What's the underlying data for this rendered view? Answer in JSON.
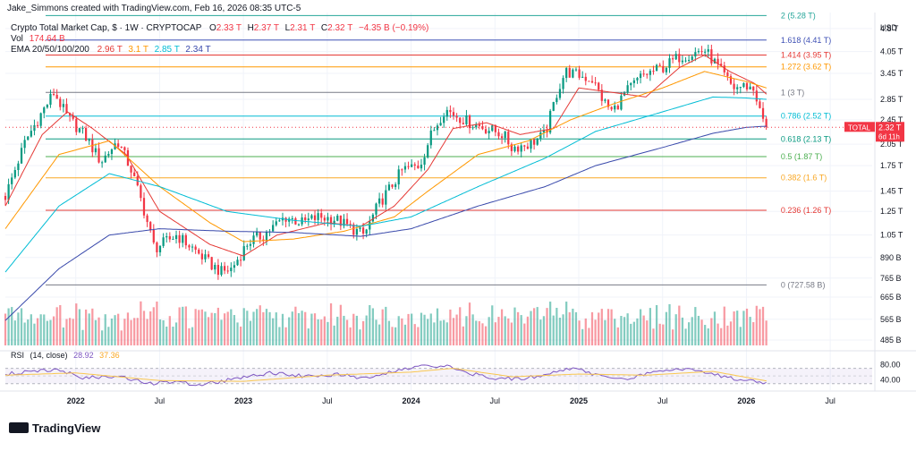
{
  "header": {
    "created_by": "Jake_Simmons created with TradingView.com, Feb 16, 2026 08:35 UTC-5"
  },
  "legend": {
    "symbol": "Crypto Total Market Cap, $ · 1W · CRYPTOCAP",
    "ohlc": {
      "o_label": "O",
      "o": "2.33 T",
      "h_label": "H",
      "h": "2.37 T",
      "l_label": "L",
      "l": "2.31 T",
      "c_label": "C",
      "c": "2.32 T",
      "change": "−4.35 B (−0.19%)"
    },
    "vol_label": "Vol",
    "vol_value": "174.64 B",
    "ema_label": "EMA 20/50/100/200",
    "ema_values": [
      {
        "value": "2.96 T",
        "color": "#e53935"
      },
      {
        "value": "3.1 T",
        "color": "#ff9800"
      },
      {
        "value": "2.85 T",
        "color": "#00bcd4"
      },
      {
        "value": "2.34 T",
        "color": "#3949ab"
      }
    ]
  },
  "price_axis": {
    "unit": "USD",
    "ticks": [
      {
        "label": "4.8 T",
        "value": 4.8
      },
      {
        "label": "4.05 T",
        "value": 4.05
      },
      {
        "label": "3.45 T",
        "value": 3.45
      },
      {
        "label": "2.85 T",
        "value": 2.85
      },
      {
        "label": "2.45 T",
        "value": 2.45
      },
      {
        "label": "2.05 T",
        "value": 2.05
      },
      {
        "label": "1.75 T",
        "value": 1.75
      },
      {
        "label": "1.45 T",
        "value": 1.45
      },
      {
        "label": "1.25 T",
        "value": 1.25
      },
      {
        "label": "1.05 T",
        "value": 1.05
      },
      {
        "label": "890 B",
        "value": 0.89
      },
      {
        "label": "765 B",
        "value": 0.765
      },
      {
        "label": "665 B",
        "value": 0.665
      },
      {
        "label": "565 B",
        "value": 0.565
      },
      {
        "label": "485 B",
        "value": 0.485
      }
    ]
  },
  "price_tag": {
    "label": "TOTAL",
    "value": "2.32 T",
    "countdown": "6d 11h",
    "price": 2.32
  },
  "fib_levels": [
    {
      "label": "2 (5.28 T)",
      "value": 5.28,
      "color": "#26a69a"
    },
    {
      "label": "1.618 (4.41 T)",
      "value": 4.41,
      "color": "#3f51b5"
    },
    {
      "label": "1.414 (3.95 T)",
      "value": 3.95,
      "color": "#e53935"
    },
    {
      "label": "1.272 (3.62 T)",
      "value": 3.62,
      "color": "#ff9800"
    },
    {
      "label": "1 (3 T)",
      "value": 3.0,
      "color": "#787b86"
    },
    {
      "label": "0.786 (2.52 T)",
      "value": 2.52,
      "color": "#00bcd4"
    },
    {
      "label": "0.618 (2.13 T)",
      "value": 2.13,
      "color": "#089981"
    },
    {
      "label": "0.5 (1.87 T)",
      "value": 1.87,
      "color": "#4caf50"
    },
    {
      "label": "0.382 (1.6 T)",
      "value": 1.6,
      "color": "#f9a825"
    },
    {
      "label": "0.236 (1.26 T)",
      "value": 1.26,
      "color": "#e53935"
    },
    {
      "label": "0 (727.58 B)",
      "value": 0.72758,
      "color": "#787b86"
    }
  ],
  "rsi": {
    "label": "RSI",
    "params": "(14, close)",
    "value": "28.92",
    "sma_value": "37.36",
    "ticks": [
      {
        "label": "80.00",
        "value": 80
      },
      {
        "label": "40.00",
        "value": 40
      }
    ]
  },
  "time_axis": [
    {
      "label": "2022",
      "x": 2022.0
    },
    {
      "label": "Jul",
      "x": 2022.5
    },
    {
      "label": "2023",
      "x": 2023.0
    },
    {
      "label": "Jul",
      "x": 2023.5
    },
    {
      "label": "2024",
      "x": 2024.0
    },
    {
      "label": "Jul",
      "x": 2024.5
    },
    {
      "label": "2025",
      "x": 2025.0
    },
    {
      "label": "Jul",
      "x": 2025.5
    },
    {
      "label": "2026",
      "x": 2026.0
    },
    {
      "label": "Jul",
      "x": 2026.5
    }
  ],
  "logo": "TradingView",
  "chart_data": {
    "type": "line",
    "scale": "log",
    "x_range": [
      2021.58,
      2026.75
    ],
    "ylim": [
      0.46,
      5.4
    ],
    "close_series": {
      "x": [
        2021.58,
        2021.7,
        2021.8,
        2021.87,
        2021.95,
        2022.05,
        2022.15,
        2022.25,
        2022.33,
        2022.4,
        2022.47,
        2022.6,
        2022.7,
        2022.8,
        2022.87,
        2022.93,
        2023.03,
        2023.12,
        2023.25,
        2023.35,
        2023.45,
        2023.55,
        2023.65,
        2023.72,
        2023.8,
        2023.88,
        2023.95,
        2024.05,
        2024.12,
        2024.2,
        2024.35,
        2024.45,
        2024.55,
        2024.6,
        2024.7,
        2024.8,
        2024.87,
        2024.92,
        2025.0,
        2025.08,
        2025.15,
        2025.2,
        2025.28,
        2025.38,
        2025.5,
        2025.6,
        2025.68,
        2025.75,
        2025.8,
        2025.85,
        2025.92,
        2026.0,
        2026.05,
        2026.08,
        2026.12
      ],
      "y": [
        1.4,
        2.1,
        2.6,
        3.0,
        2.5,
        2.2,
        1.8,
        2.1,
        1.7,
        1.3,
        0.95,
        1.05,
        0.95,
        0.85,
        0.8,
        0.82,
        1.0,
        1.05,
        1.2,
        1.15,
        1.2,
        1.18,
        1.1,
        1.05,
        1.3,
        1.5,
        1.7,
        1.75,
        2.2,
        2.65,
        2.4,
        2.3,
        2.2,
        2.0,
        2.05,
        2.2,
        3.0,
        3.5,
        3.4,
        3.3,
        2.8,
        2.6,
        3.0,
        3.4,
        3.6,
        3.9,
        4.0,
        4.1,
        3.8,
        3.5,
        3.1,
        3.15,
        3.05,
        2.6,
        2.32
      ]
    },
    "ema_series": [
      {
        "name": "EMA 20",
        "color": "#e53935",
        "x": [
          2021.58,
          2021.8,
          2021.95,
          2022.1,
          2022.3,
          2022.5,
          2022.8,
          2023.0,
          2023.2,
          2023.5,
          2023.7,
          2023.9,
          2024.1,
          2024.25,
          2024.45,
          2024.65,
          2024.85,
          2025.0,
          2025.2,
          2025.4,
          2025.6,
          2025.75,
          2025.9,
          2026.05,
          2026.12
        ],
        "y": [
          1.3,
          2.2,
          2.6,
          2.3,
          1.9,
          1.25,
          0.98,
          0.9,
          1.05,
          1.15,
          1.12,
          1.3,
          1.7,
          2.3,
          2.4,
          2.2,
          2.3,
          3.1,
          3.0,
          2.9,
          3.6,
          3.95,
          3.5,
          3.2,
          2.96
        ]
      },
      {
        "name": "EMA 50",
        "color": "#ff9800",
        "x": [
          2021.58,
          2021.9,
          2022.2,
          2022.5,
          2022.8,
          2023.0,
          2023.3,
          2023.6,
          2023.9,
          2024.1,
          2024.4,
          2024.7,
          2024.95,
          2025.2,
          2025.5,
          2025.75,
          2026.0,
          2026.12
        ],
        "y": [
          1.1,
          1.9,
          2.1,
          1.5,
          1.15,
          1.0,
          1.02,
          1.08,
          1.2,
          1.45,
          1.9,
          2.1,
          2.45,
          2.75,
          3.1,
          3.5,
          3.25,
          3.1
        ]
      },
      {
        "name": "EMA 100",
        "color": "#00bcd4",
        "x": [
          2021.58,
          2021.9,
          2022.2,
          2022.5,
          2022.9,
          2023.3,
          2023.7,
          2024.0,
          2024.4,
          2024.8,
          2025.1,
          2025.5,
          2025.8,
          2026.0,
          2026.12
        ],
        "y": [
          0.8,
          1.3,
          1.65,
          1.5,
          1.25,
          1.17,
          1.12,
          1.2,
          1.5,
          1.85,
          2.25,
          2.6,
          2.9,
          2.88,
          2.85
        ]
      },
      {
        "name": "EMA 200",
        "color": "#3949ab",
        "x": [
          2021.58,
          2021.9,
          2022.2,
          2022.5,
          2022.9,
          2023.3,
          2023.7,
          2024.0,
          2024.4,
          2024.8,
          2025.1,
          2025.5,
          2025.8,
          2026.0,
          2026.12
        ],
        "y": [
          0.56,
          0.82,
          1.05,
          1.1,
          1.08,
          1.07,
          1.04,
          1.1,
          1.3,
          1.5,
          1.75,
          2.0,
          2.22,
          2.32,
          2.34
        ]
      }
    ],
    "rsi_series": {
      "x": [
        2021.58,
        2021.75,
        2021.9,
        2022.05,
        2022.25,
        2022.45,
        2022.55,
        2022.75,
        2022.95,
        2023.15,
        2023.35,
        2023.55,
        2023.75,
        2023.95,
        2024.1,
        2024.2,
        2024.35,
        2024.55,
        2024.7,
        2024.85,
        2024.95,
        2025.15,
        2025.3,
        2025.45,
        2025.55,
        2025.7,
        2025.8,
        2025.9,
        2026.0,
        2026.12
      ],
      "y": [
        55,
        62,
        66,
        45,
        48,
        30,
        35,
        28,
        42,
        58,
        50,
        54,
        44,
        68,
        78,
        76,
        56,
        42,
        46,
        58,
        70,
        48,
        42,
        62,
        66,
        68,
        56,
        44,
        40,
        29
      ]
    },
    "rsi_sma_series": {
      "x": [
        2021.58,
        2022.0,
        2022.5,
        2023.0,
        2023.5,
        2024.0,
        2024.25,
        2024.6,
        2025.0,
        2025.4,
        2025.8,
        2026.12
      ],
      "y": [
        52,
        58,
        38,
        36,
        52,
        60,
        70,
        48,
        55,
        52,
        62,
        37
      ]
    }
  }
}
